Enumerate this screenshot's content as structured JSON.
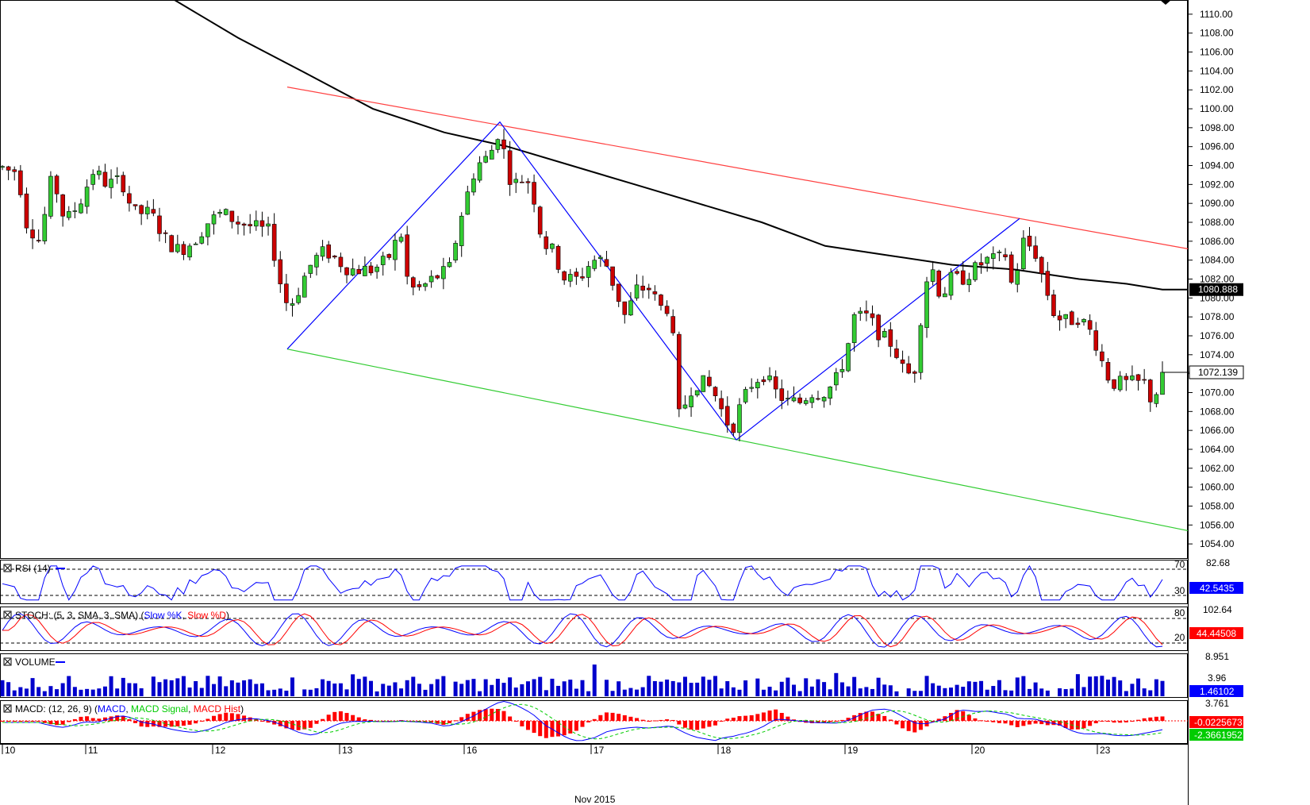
{
  "chart_data": {
    "type": "candlestick",
    "instrument_timeframe_visible": false,
    "price_axis": {
      "ylim": [
        1052.5,
        1111.5
      ],
      "ticks": [
        "1110.00",
        "1108.00",
        "1106.00",
        "1104.00",
        "1102.00",
        "1100.00",
        "1098.00",
        "1096.00",
        "1094.00",
        "1092.00",
        "1090.00",
        "1088.00",
        "1086.00",
        "1084.00",
        "1082.00",
        "1080.00",
        "1078.00",
        "1076.00",
        "1074.00",
        "1072.00",
        "1070.00",
        "1068.00",
        "1066.00",
        "1064.00",
        "1062.00",
        "1060.00",
        "1058.00",
        "1056.00",
        "1054.00"
      ],
      "ma_value_label": "1080.888",
      "last_price_label": "1072.139"
    },
    "date_axis": {
      "labels": [
        "10",
        "11",
        "12",
        "13",
        "16",
        "17",
        "18",
        "19",
        "20",
        "23"
      ],
      "month_label": "Nov 2015"
    },
    "candles_count": 193,
    "price_path": [
      [
        0,
        1094
      ],
      [
        8,
        1093.5
      ],
      [
        22,
        1093.5
      ],
      [
        33,
        1088
      ],
      [
        50,
        1086
      ],
      [
        66,
        1093
      ],
      [
        82,
        1088
      ],
      [
        100,
        1090
      ],
      [
        118,
        1093.5
      ],
      [
        135,
        1092
      ],
      [
        153,
        1092.5
      ],
      [
        168,
        1089
      ],
      [
        190,
        1089
      ],
      [
        210,
        1086
      ],
      [
        226,
        1085
      ],
      [
        244,
        1086
      ],
      [
        262,
        1088
      ],
      [
        280,
        1089
      ],
      [
        300,
        1088
      ],
      [
        320,
        1087.5
      ],
      [
        340,
        1087
      ],
      [
        352,
        1082
      ],
      [
        363,
        1079
      ],
      [
        372,
        1080
      ],
      [
        382,
        1082
      ],
      [
        395,
        1084
      ],
      [
        410,
        1085
      ],
      [
        425,
        1084
      ],
      [
        440,
        1083
      ],
      [
        455,
        1083
      ],
      [
        470,
        1083
      ],
      [
        488,
        1084
      ],
      [
        505,
        1087
      ],
      [
        515,
        1081
      ],
      [
        530,
        1081
      ],
      [
        545,
        1082
      ],
      [
        566,
        1083
      ],
      [
        582,
        1089
      ],
      [
        600,
        1094
      ],
      [
        617,
        1095
      ],
      [
        630,
        1098
      ],
      [
        640,
        1093
      ],
      [
        652,
        1092
      ],
      [
        663,
        1093
      ],
      [
        675,
        1090
      ],
      [
        683,
        1086
      ],
      [
        696,
        1085
      ],
      [
        712,
        1082
      ],
      [
        730,
        1082
      ],
      [
        746,
        1084
      ],
      [
        762,
        1084
      ],
      [
        775,
        1081
      ],
      [
        788,
        1078
      ],
      [
        803,
        1081
      ],
      [
        818,
        1081
      ],
      [
        832,
        1079
      ],
      [
        842,
        1079
      ],
      [
        851,
        1074
      ],
      [
        857,
        1066
      ],
      [
        866,
        1070
      ],
      [
        878,
        1071
      ],
      [
        890,
        1071
      ],
      [
        900,
        1070
      ],
      [
        910,
        1068
      ],
      [
        922,
        1066
      ],
      [
        935,
        1069
      ],
      [
        948,
        1071
      ],
      [
        962,
        1072
      ],
      [
        978,
        1070
      ],
      [
        992,
        1069
      ],
      [
        1008,
        1069
      ],
      [
        1022,
        1070
      ],
      [
        1038,
        1070
      ],
      [
        1052,
        1071
      ],
      [
        1066,
        1074
      ],
      [
        1076,
        1078
      ],
      [
        1094,
        1078
      ],
      [
        1110,
        1076
      ],
      [
        1126,
        1075
      ],
      [
        1140,
        1072
      ],
      [
        1152,
        1072
      ],
      [
        1162,
        1079
      ],
      [
        1172,
        1084
      ],
      [
        1186,
        1080
      ],
      [
        1198,
        1082
      ],
      [
        1212,
        1082
      ],
      [
        1228,
        1083
      ],
      [
        1242,
        1084
      ],
      [
        1258,
        1084
      ],
      [
        1266,
        1085
      ],
      [
        1276,
        1081
      ],
      [
        1290,
        1086
      ],
      [
        1304,
        1085
      ],
      [
        1318,
        1081
      ],
      [
        1330,
        1078
      ],
      [
        1345,
        1077.5
      ],
      [
        1360,
        1078
      ],
      [
        1378,
        1076
      ],
      [
        1390,
        1073
      ],
      [
        1400,
        1071
      ],
      [
        1414,
        1071
      ],
      [
        1430,
        1071
      ],
      [
        1442,
        1071
      ],
      [
        1452,
        1069
      ],
      [
        1465,
        1071.5
      ]
    ],
    "moving_average_path": [
      [
        220,
        1111.5
      ],
      [
        300,
        1107.5
      ],
      [
        380,
        1104
      ],
      [
        470,
        1100
      ],
      [
        560,
        1097.5
      ],
      [
        640,
        1096
      ],
      [
        720,
        1094
      ],
      [
        800,
        1092
      ],
      [
        880,
        1090
      ],
      [
        960,
        1088
      ],
      [
        1040,
        1085.5
      ],
      [
        1120,
        1084.5
      ],
      [
        1200,
        1083.5
      ],
      [
        1280,
        1083
      ],
      [
        1360,
        1082
      ],
      [
        1420,
        1081.5
      ],
      [
        1465,
        1080.888
      ],
      [
        1497,
        1080.888
      ]
    ],
    "trend_lines": [
      {
        "color": "#ff4040",
        "points": [
          [
            362,
            1102.3
          ],
          [
            1497,
            1085.2
          ]
        ]
      },
      {
        "color": "#33cc33",
        "points": [
          [
            362,
            1074.6
          ],
          [
            1497,
            1055.4
          ]
        ]
      }
    ],
    "zigzag": [
      [
        362,
        1074.6
      ],
      [
        630,
        1098.6
      ],
      [
        928,
        1065
      ],
      [
        1285,
        1088.4
      ]
    ],
    "rsi": {
      "label": "RSI (14)",
      "scale_label": "82.68",
      "levels": [
        "70",
        "30"
      ],
      "value_label": "42.5435",
      "color": "#0000ff"
    },
    "stoch": {
      "label_parts": [
        "STOCH: (5, 3, SMA, 3, SMA) (",
        "Slow %K",
        ", ",
        "Slow %D",
        ")"
      ],
      "scale_label": "102.64",
      "levels": [
        "80",
        "20"
      ],
      "value_label": "44.44508",
      "k_color": "#0000ff",
      "d_color": "#ff0000"
    },
    "volume": {
      "label": "VOLUME",
      "scale_labels": [
        "8.951",
        "3.96"
      ],
      "value_label": "1.46102",
      "color": "#0000cc"
    },
    "macd": {
      "label_parts": [
        "MACD: (12, 26, 9) (",
        "MACD",
        ", ",
        "MACD Signal",
        ", ",
        "MACD Hist",
        ")"
      ],
      "scale_label": "3.761",
      "value_labels": [
        "-0.0225673",
        "-2.3661952"
      ],
      "macd_color": "#0000ff",
      "signal_color": "#00cc00",
      "hist_color": "#ff0000"
    },
    "colors": {
      "bull": "#33cc33",
      "bear": "#cc0000",
      "ma": "#000000",
      "zigzag": "#0000ff",
      "label_bg": "#0000ff"
    }
  }
}
